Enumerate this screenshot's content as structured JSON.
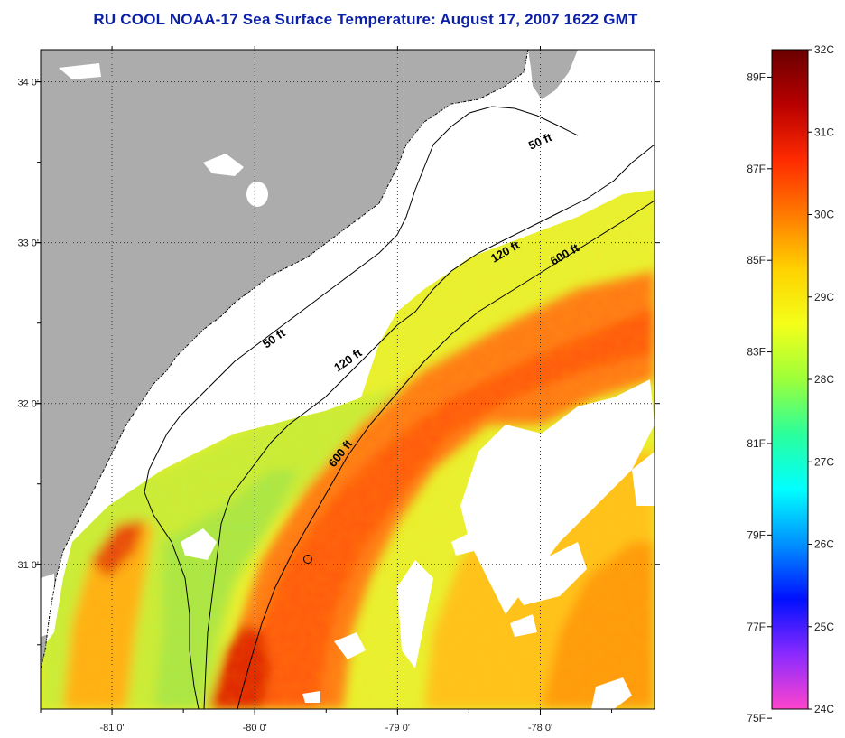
{
  "title": "RU COOL  NOAA-17  Sea Surface Temperature:  August 17, 2007 1622 GMT",
  "map": {
    "lon_range": [
      -81.5,
      -77.2
    ],
    "lat_range": [
      30.1,
      34.2
    ],
    "lat_ticks": [
      {
        "value": 34.0,
        "label": "34 0'"
      },
      {
        "value": 33.0,
        "label": "33 0'"
      },
      {
        "value": 32.0,
        "label": "32 0'"
      },
      {
        "value": 31.0,
        "label": "31 0'"
      }
    ],
    "lon_ticks": [
      {
        "value": -81.0,
        "label": "-81 0'"
      },
      {
        "value": -80.0,
        "label": "-80 0'"
      },
      {
        "value": -79.0,
        "label": "-79 0'"
      },
      {
        "value": -78.0,
        "label": "-78 0'"
      }
    ],
    "contour_labels": [
      {
        "id": "50-ft-north",
        "text": "50 ft"
      },
      {
        "id": "50-ft-south",
        "text": "50 ft"
      },
      {
        "id": "120-ft-north",
        "text": "120 ft"
      },
      {
        "id": "120-ft-south",
        "text": "120 ft"
      },
      {
        "id": "600-ft-north",
        "text": "600 ft"
      },
      {
        "id": "600-ft-south",
        "text": "600 ft"
      }
    ],
    "colors": {
      "land": "#acacac",
      "shelf_no_data": "#ffffff",
      "warm": "#ff4a00",
      "mid": "#ffd21a",
      "cool": "#a8f04a"
    }
  },
  "colorbar": {
    "celsius": [
      "32C",
      "31C",
      "30C",
      "29C",
      "28C",
      "27C",
      "26C",
      "25C",
      "24C"
    ],
    "fahrenheit": [
      "89F",
      "87F",
      "85F",
      "83F",
      "81F",
      "79F",
      "77F",
      "75F"
    ],
    "stops": [
      "#6a0000",
      "#b80000",
      "#ff2a00",
      "#ff7a00",
      "#ffd200",
      "#f4ff1a",
      "#9cff3a",
      "#2aff9c",
      "#00ffff",
      "#0090ff",
      "#0010ff",
      "#8a2aff",
      "#ff44cc"
    ]
  }
}
